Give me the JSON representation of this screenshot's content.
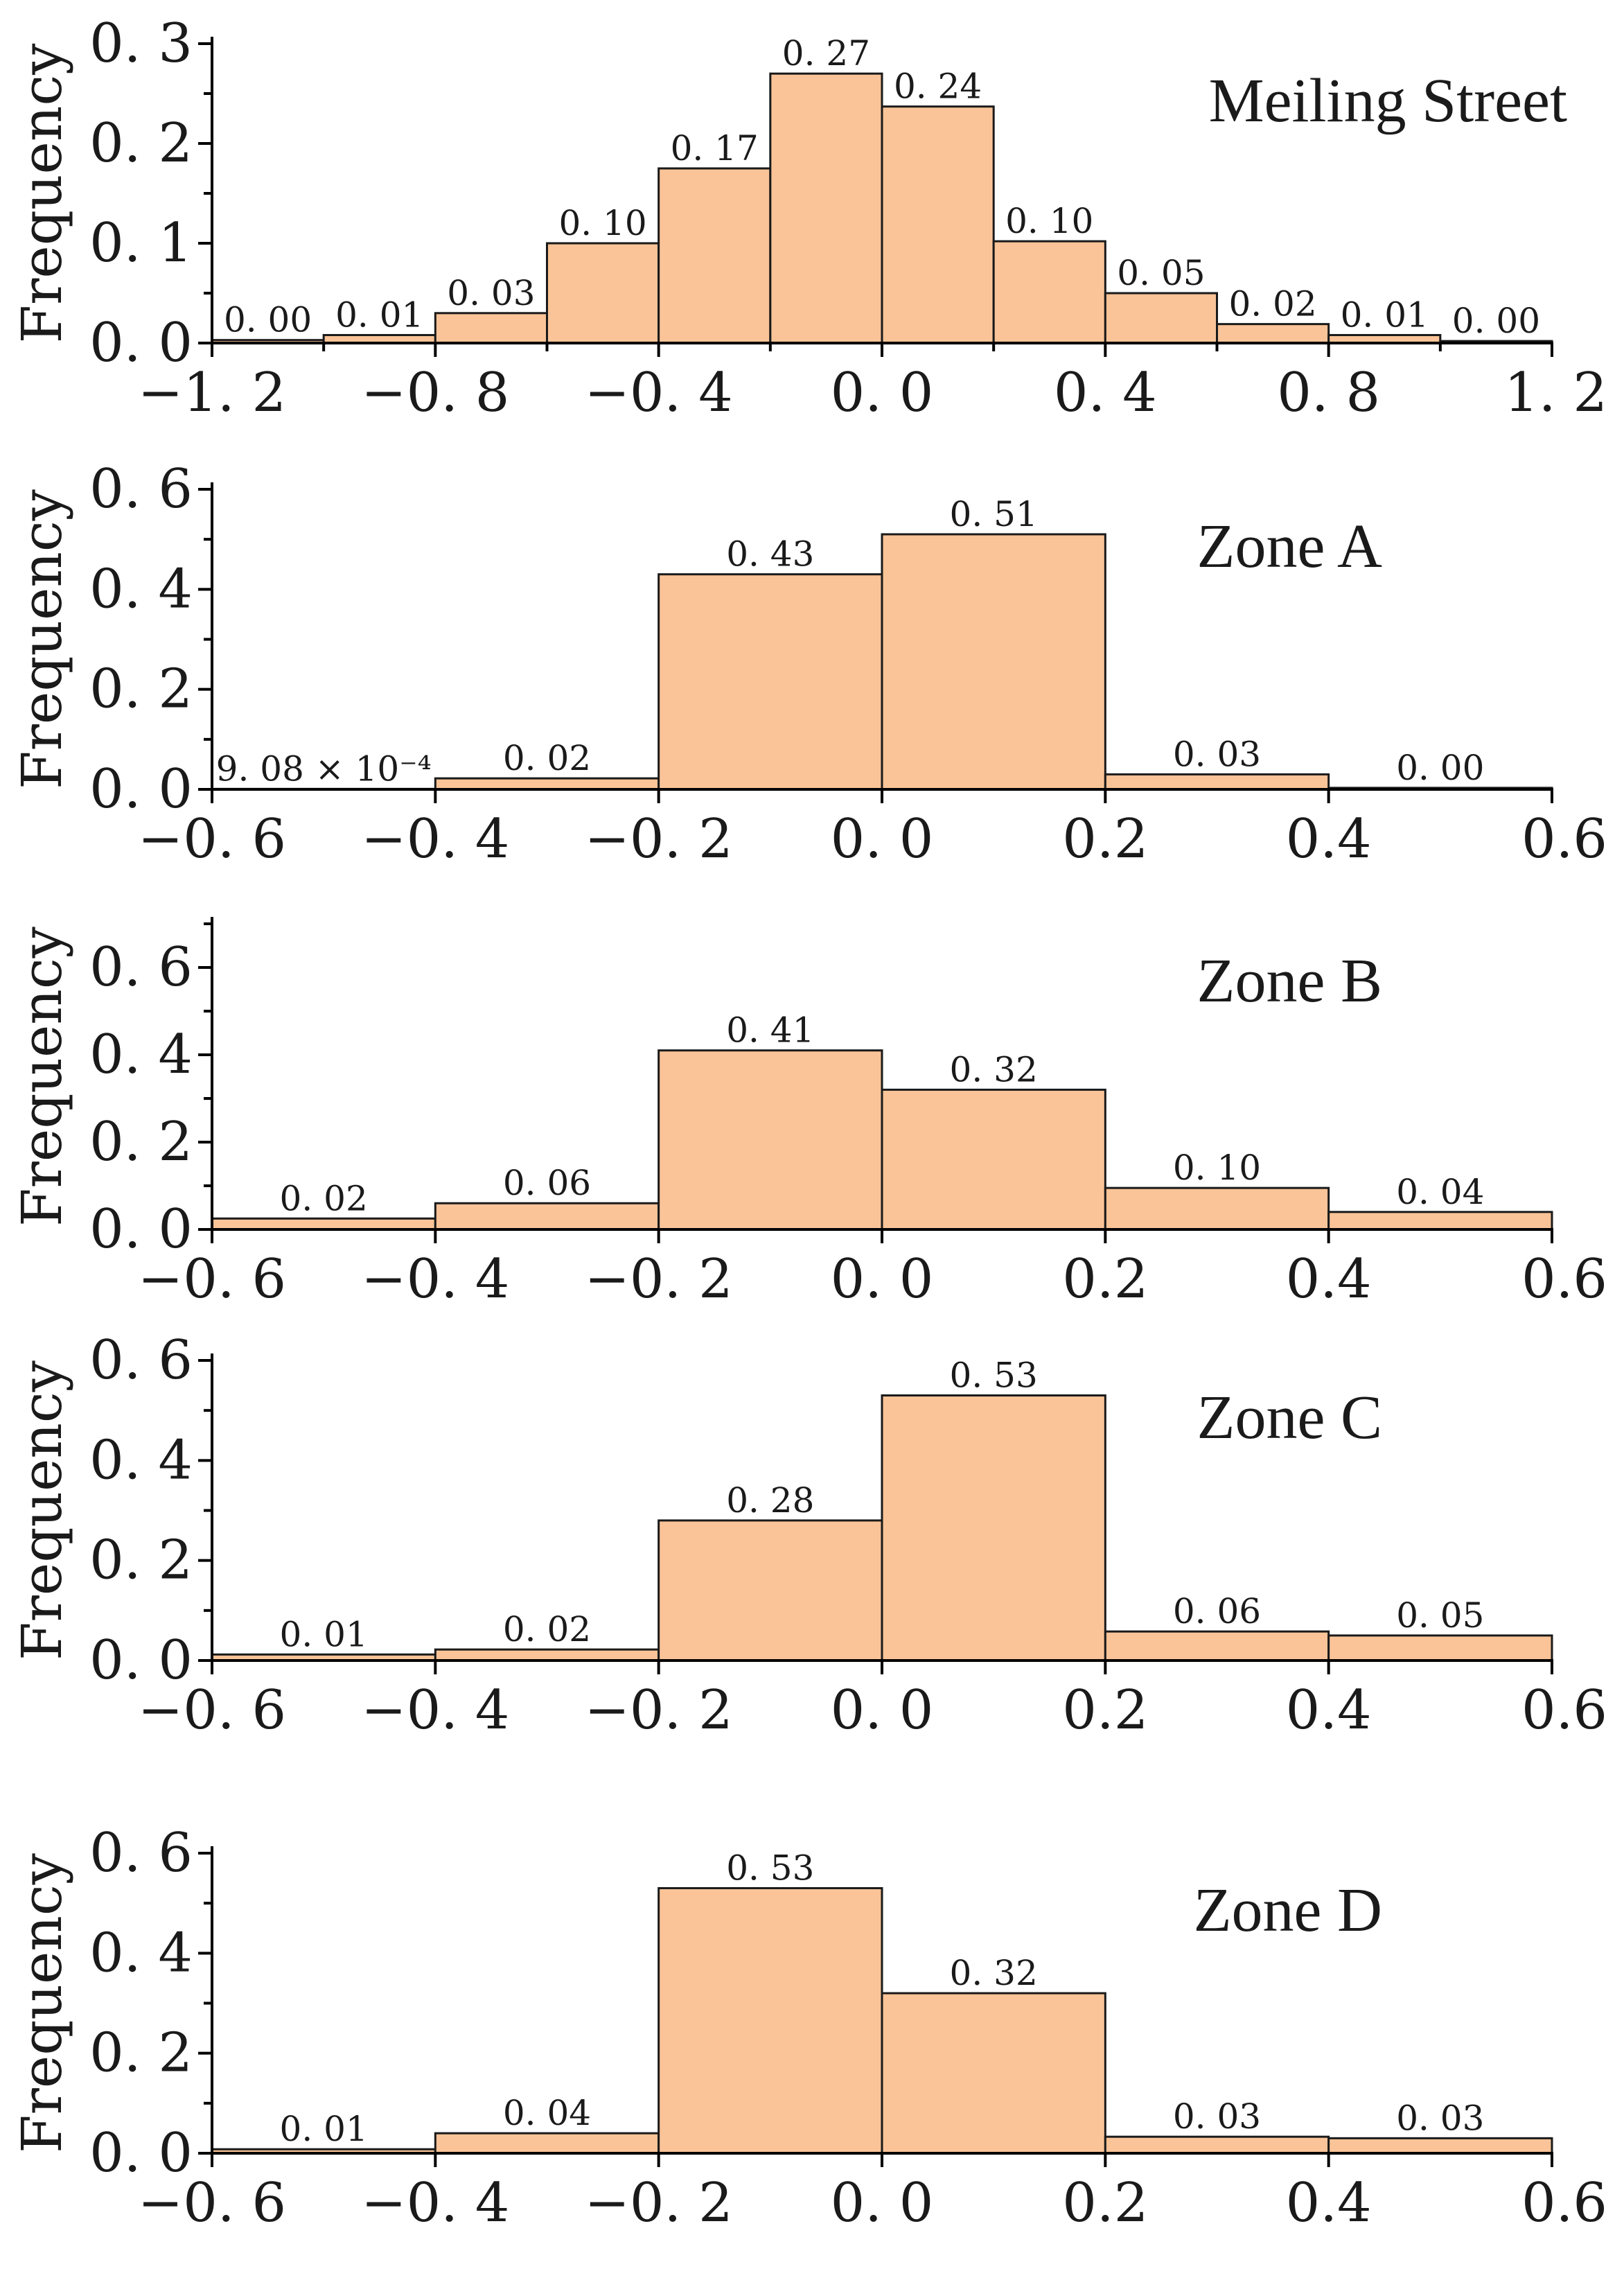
{
  "figure": {
    "bar_color": "#FAC498",
    "bar_edge_color": "#1a1a1a",
    "axis_color": "#000000"
  },
  "chart_data": [
    {
      "type": "bar",
      "title": "Meiling Street",
      "ylabel": "Frequency",
      "xlabel": "",
      "xlim": [
        -1.2,
        1.2
      ],
      "ylim": [
        0,
        0.3
      ],
      "bin_edges": [
        -1.2,
        -1.0,
        -0.8,
        -0.6,
        -0.4,
        -0.2,
        0.0,
        0.2,
        0.4,
        0.6,
        0.8,
        1.0,
        1.2
      ],
      "values": [
        0.003,
        0.008,
        0.03,
        0.1,
        0.175,
        0.27,
        0.237,
        0.102,
        0.05,
        0.019,
        0.008,
        0.002
      ],
      "value_labels": [
        "0. 00",
        "0. 01",
        "0. 03",
        "0. 10",
        "0. 17",
        "0. 27",
        "0. 24",
        "0. 10",
        "0. 05",
        "0. 02",
        "0. 01",
        "0. 00"
      ],
      "x_ticks": [
        -1.2,
        -0.8,
        -0.4,
        0.0,
        0.4,
        0.8,
        1.2
      ],
      "x_tick_labels": [
        "−1. 2",
        "−0. 8",
        "−0. 4",
        "0. 0",
        "0. 4",
        "0. 8",
        "1. 2"
      ],
      "y_ticks": [
        0.0,
        0.1,
        0.2,
        0.3
      ],
      "y_tick_labels": [
        "0. 0",
        "0. 1",
        "0. 2",
        "0. 3"
      ],
      "y_minor_step": 0.05
    },
    {
      "type": "bar",
      "title": "Zone A",
      "ylabel": "Frequency",
      "xlabel": "",
      "xlim": [
        -0.6,
        0.6
      ],
      "ylim": [
        0,
        0.6
      ],
      "bin_edges": [
        -0.6,
        -0.4,
        -0.2,
        0.0,
        0.2,
        0.4,
        0.6
      ],
      "values": [
        0.000908,
        0.022,
        0.43,
        0.51,
        0.03,
        0.003
      ],
      "value_labels": [
        "9. 08 × 10⁻⁴",
        "0. 02",
        "0. 43",
        "0. 51",
        "0. 03",
        "0. 00"
      ],
      "x_ticks": [
        -0.6,
        -0.4,
        -0.2,
        0.0,
        0.2,
        0.4,
        0.6
      ],
      "x_tick_labels": [
        "−0. 6",
        "−0. 4",
        "−0. 2",
        "0. 0",
        "0.2",
        "0.4",
        "0.6"
      ],
      "y_ticks": [
        0.0,
        0.2,
        0.4,
        0.6
      ],
      "y_tick_labels": [
        "0. 0",
        "0. 2",
        "0. 4",
        "0. 6"
      ],
      "y_minor_step": 0.1
    },
    {
      "type": "bar",
      "title": "Zone B",
      "ylabel": "Frequency",
      "xlabel": "",
      "xlim": [
        -0.6,
        0.6
      ],
      "ylim": [
        0,
        0.7
      ],
      "bin_edges": [
        -0.6,
        -0.4,
        -0.2,
        0.0,
        0.2,
        0.4,
        0.6
      ],
      "values": [
        0.025,
        0.06,
        0.41,
        0.32,
        0.095,
        0.04
      ],
      "value_labels": [
        "0. 02",
        "0. 06",
        "0. 41",
        "0. 32",
        "0. 10",
        "0. 04"
      ],
      "x_ticks": [
        -0.6,
        -0.4,
        -0.2,
        0.0,
        0.2,
        0.4,
        0.6
      ],
      "x_tick_labels": [
        "−0. 6",
        "−0. 4",
        "−0. 2",
        "0. 0",
        "0.2",
        "0.4",
        "0.6"
      ],
      "y_ticks": [
        0.0,
        0.2,
        0.4,
        0.6
      ],
      "y_tick_labels": [
        "0. 0",
        "0. 2",
        "0. 4",
        "0. 6"
      ],
      "y_minor_step": 0.1
    },
    {
      "type": "bar",
      "title": "Zone C",
      "ylabel": "Frequency",
      "xlabel": "",
      "xlim": [
        -0.6,
        0.6
      ],
      "ylim": [
        0,
        0.6
      ],
      "bin_edges": [
        -0.6,
        -0.4,
        -0.2,
        0.0,
        0.2,
        0.4,
        0.6
      ],
      "values": [
        0.012,
        0.022,
        0.28,
        0.53,
        0.058,
        0.05
      ],
      "value_labels": [
        "0. 01",
        "0. 02",
        "0. 28",
        "0. 53",
        "0. 06",
        "0. 05"
      ],
      "x_ticks": [
        -0.6,
        -0.4,
        -0.2,
        0.0,
        0.2,
        0.4,
        0.6
      ],
      "x_tick_labels": [
        "−0. 6",
        "−0. 4",
        "−0. 2",
        "0. 0",
        "0.2",
        "0.4",
        "0.6"
      ],
      "y_ticks": [
        0.0,
        0.2,
        0.4,
        0.6
      ],
      "y_tick_labels": [
        "0. 0",
        "0. 2",
        "0. 4",
        "0. 6"
      ],
      "y_minor_step": 0.1
    },
    {
      "type": "bar",
      "title": "Zone D",
      "ylabel": "Frequency",
      "xlabel": "",
      "xlim": [
        -0.6,
        0.6
      ],
      "ylim": [
        0,
        0.6
      ],
      "bin_edges": [
        -0.6,
        -0.4,
        -0.2,
        0.0,
        0.2,
        0.4,
        0.6
      ],
      "values": [
        0.008,
        0.04,
        0.53,
        0.32,
        0.033,
        0.03
      ],
      "value_labels": [
        "0. 01",
        "0. 04",
        "0. 53",
        "0. 32",
        "0. 03",
        "0. 03"
      ],
      "x_ticks": [
        -0.6,
        -0.4,
        -0.2,
        0.0,
        0.2,
        0.4,
        0.6
      ],
      "x_tick_labels": [
        "−0. 6",
        "−0. 4",
        "−0. 2",
        "0. 0",
        "0.2",
        "0.4",
        "0.6"
      ],
      "y_ticks": [
        0.0,
        0.2,
        0.4,
        0.6
      ],
      "y_tick_labels": [
        "0. 0",
        "0. 2",
        "0. 4",
        "0. 6"
      ],
      "y_minor_step": 0.1
    }
  ]
}
